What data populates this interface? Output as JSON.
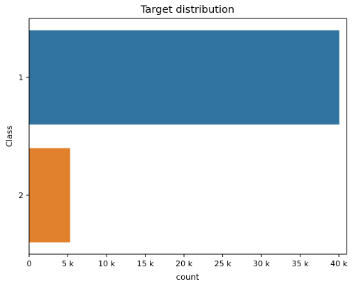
{
  "chart_data": {
    "type": "bar",
    "orientation": "horizontal",
    "title": "Target distribution",
    "xlabel": "count",
    "ylabel": "Class",
    "categories": [
      "1",
      "2"
    ],
    "values": [
      40050,
      5300
    ],
    "bar_colors": [
      "#3274a1",
      "#e1812c"
    ],
    "xlim": [
      0,
      41000
    ],
    "xticks": [
      0,
      5000,
      10000,
      15000,
      20000,
      25000,
      30000,
      35000,
      40000
    ],
    "xtick_labels": [
      "0",
      "5 k",
      "10 k",
      "15 k",
      "20 k",
      "25 k",
      "30 k",
      "35 k",
      "40 k"
    ],
    "grid": false,
    "legend": "none"
  }
}
